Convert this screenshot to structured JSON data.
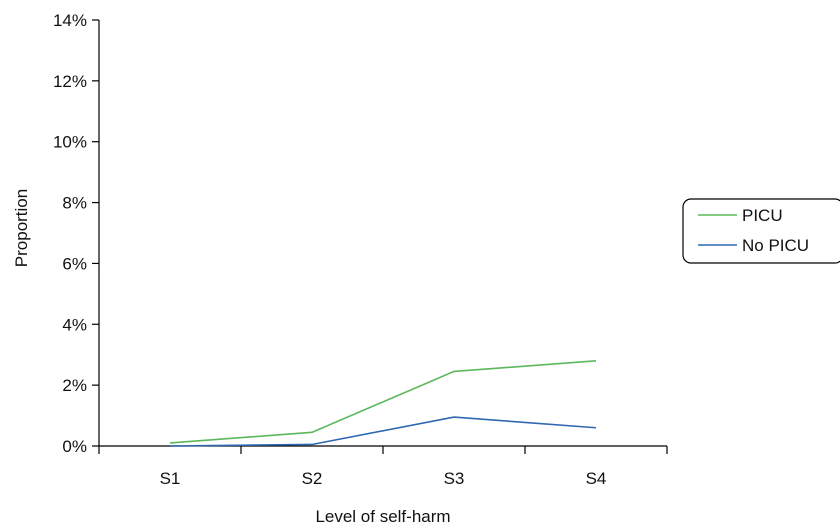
{
  "chart_data": {
    "type": "line",
    "title": "",
    "xlabel": "Level of self-harm",
    "ylabel": "Proportion",
    "categories": [
      "S1",
      "S2",
      "S3",
      "S4"
    ],
    "ylim": [
      0,
      14
    ],
    "yticks": [
      "0%",
      "2%",
      "4%",
      "6%",
      "8%",
      "10%",
      "12%",
      "14%"
    ],
    "grid": false,
    "legend_position": "right",
    "series": [
      {
        "name": "PICU",
        "color": "#5cb85c",
        "values": [
          0.1,
          0.45,
          2.45,
          2.8
        ]
      },
      {
        "name": "No PICU",
        "color": "#2f67b1",
        "values": [
          0.0,
          0.05,
          0.95,
          0.6
        ]
      }
    ]
  }
}
